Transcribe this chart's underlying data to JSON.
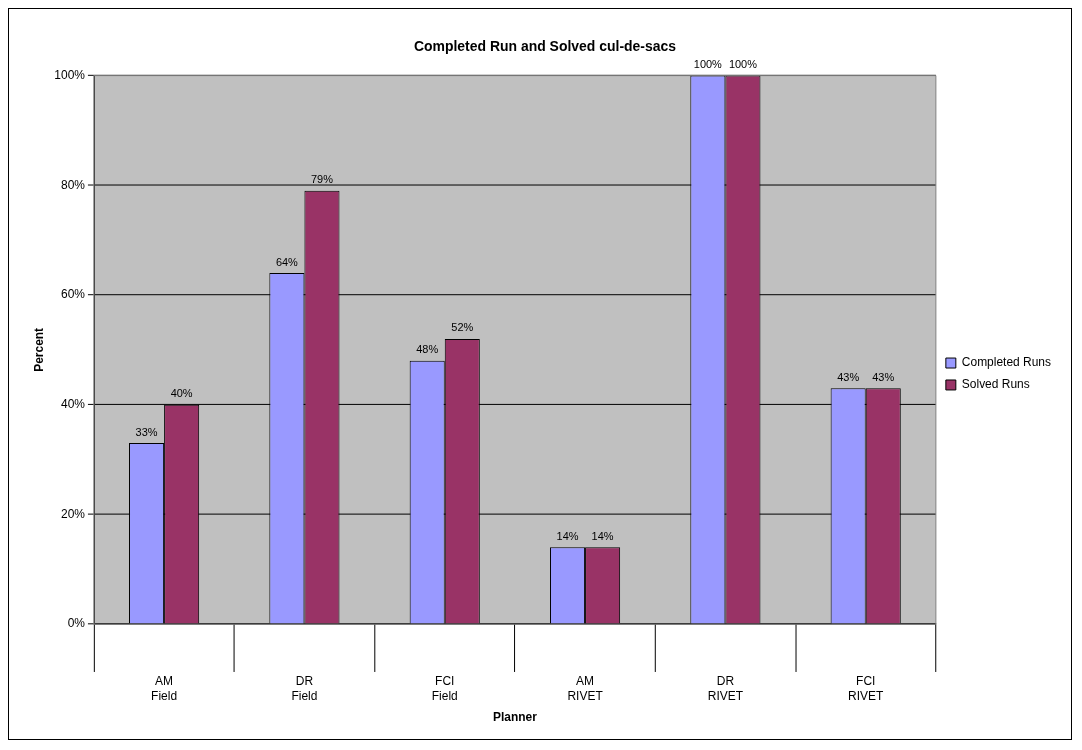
{
  "chart_data": {
    "type": "bar",
    "title": "Completed Run and Solved cul-de-sacs",
    "xlabel": "Planner",
    "ylabel": "Percent",
    "categories": [
      "AM\nField",
      "DR\nField",
      "FCI\nField",
      "AM\nRIVET",
      "DR\nRIVET",
      "FCI\nRIVET"
    ],
    "series": [
      {
        "name": "Completed Runs",
        "color": "#9999ff",
        "values": [
          33,
          64,
          48,
          14,
          100,
          43
        ],
        "value_labels": [
          "33%",
          "64%",
          "48%",
          "14%",
          "100%",
          "43%"
        ]
      },
      {
        "name": "Solved Runs",
        "color": "#993366",
        "values": [
          40,
          79,
          52,
          14,
          100,
          43
        ],
        "value_labels": [
          "40%",
          "79%",
          "52%",
          "14%",
          "100%",
          "43%"
        ]
      }
    ],
    "ylim": [
      0,
      100
    ],
    "yticks": [
      {
        "value": 0,
        "label": "0%"
      },
      {
        "value": 20,
        "label": "20%"
      },
      {
        "value": 40,
        "label": "40%"
      },
      {
        "value": 60,
        "label": "60%"
      },
      {
        "value": 80,
        "label": "80%"
      },
      {
        "value": 100,
        "label": "100%"
      }
    ],
    "grid": "y",
    "legend": "right"
  }
}
